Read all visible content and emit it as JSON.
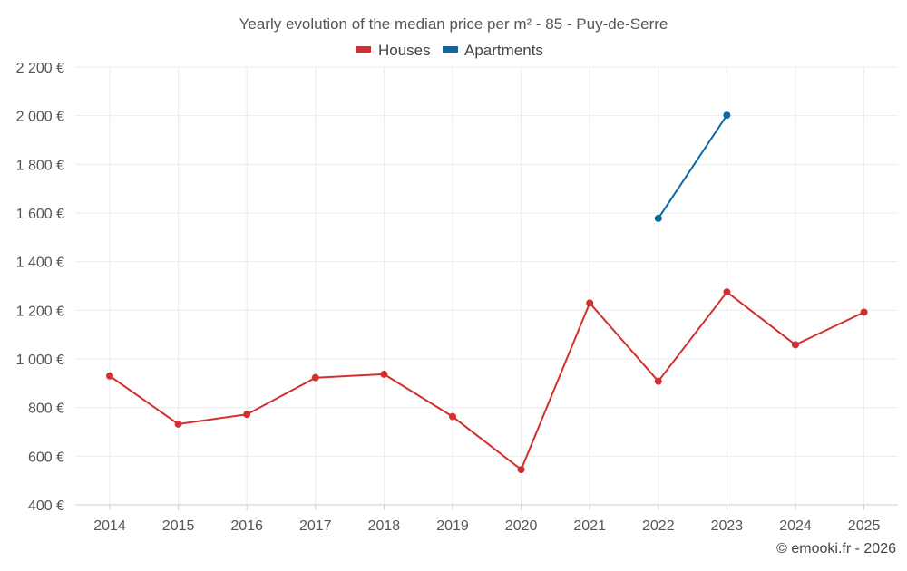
{
  "chart_data": {
    "type": "line",
    "title": "Yearly evolution of the median price per m² - 85 - Puy-de-Serre",
    "x": [
      "2014",
      "2015",
      "2016",
      "2017",
      "2018",
      "2019",
      "2020",
      "2021",
      "2022",
      "2023",
      "2024",
      "2025"
    ],
    "ylim": [
      400,
      2200
    ],
    "yticks": [
      400,
      600,
      800,
      1000,
      1200,
      1400,
      1600,
      1800,
      2000,
      2200
    ],
    "ytick_labels": [
      "400 €",
      "600 €",
      "800 €",
      "1 000 €",
      "1 200 €",
      "1 400 €",
      "1 600 €",
      "1 800 €",
      "2 000 €",
      "2 200 €"
    ],
    "grid": true,
    "legend_position": "top-center",
    "series": [
      {
        "name": "Houses",
        "color": "#d32f2f",
        "values": [
          930,
          732,
          772,
          923,
          937,
          763,
          545,
          1230,
          908,
          1275,
          1058,
          1192
        ]
      },
      {
        "name": "Apartments",
        "color": "#0a6aa1",
        "values": [
          null,
          null,
          null,
          null,
          null,
          null,
          null,
          null,
          1578,
          2002,
          null,
          null
        ]
      }
    ],
    "credit": "© emooki.fr - 2026"
  }
}
